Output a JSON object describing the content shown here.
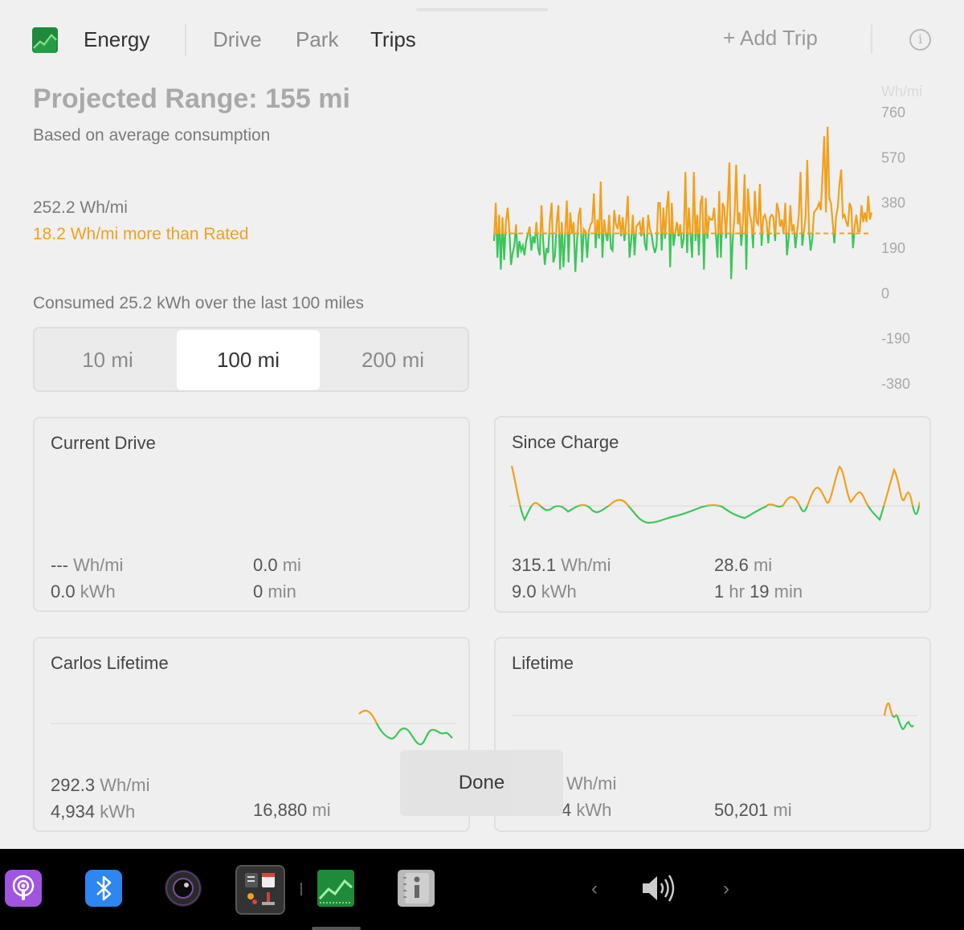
{
  "header": {
    "app_title": "Energy",
    "tabs": [
      {
        "label": "Drive",
        "active": false
      },
      {
        "label": "Park",
        "active": false
      },
      {
        "label": "Trips",
        "active": true
      }
    ],
    "add_trip_label": "+ Add Trip",
    "info_glyph": "i"
  },
  "range": {
    "title": "Projected Range: 155 mi",
    "subtitle": "Based on average consumption",
    "avg_consumption": "252.2 Wh/mi",
    "vs_rated": "18.2 Wh/mi more than Rated",
    "consumed_summary": "Consumed 25.2 kWh over the last 100 miles"
  },
  "distance_selector": {
    "options": [
      {
        "label": "10 mi",
        "active": false
      },
      {
        "label": "100 mi",
        "active": true
      },
      {
        "label": "200 mi",
        "active": false
      }
    ]
  },
  "chart_data": {
    "type": "line",
    "ylabel": "Wh/mi",
    "ylim": [
      -380,
      760
    ],
    "yticks": [
      760,
      570,
      380,
      190,
      0,
      -190,
      -380
    ],
    "reference_line": 252,
    "colors": {
      "above": "#f2a01c",
      "below": "#3cc65a",
      "reference": "#f2a01c"
    },
    "values": [
      220,
      380,
      150,
      330,
      100,
      320,
      140,
      300,
      360,
      270,
      120,
      170,
      200,
      290,
      150,
      220,
      180,
      200,
      160,
      220,
      250,
      280,
      180,
      240,
      210,
      300,
      190,
      160,
      370,
      220,
      120,
      190,
      170,
      310,
      380,
      130,
      160,
      300,
      370,
      100,
      300,
      110,
      250,
      390,
      130,
      340,
      250,
      300,
      90,
      220,
      330,
      360,
      130,
      270,
      260,
      150,
      260,
      290,
      300,
      420,
      190,
      310,
      230,
      470,
      150,
      310,
      250,
      220,
      330,
      190,
      180,
      350,
      290,
      270,
      330,
      240,
      320,
      220,
      300,
      410,
      150,
      220,
      330,
      160,
      280,
      290,
      300,
      240,
      320,
      210,
      180,
      330,
      270,
      250,
      200,
      170,
      200,
      380,
      380,
      180,
      360,
      230,
      360,
      430,
      110,
      380,
      200,
      250,
      300,
      240,
      290,
      190,
      230,
      510,
      170,
      360,
      250,
      150,
      510,
      220,
      330,
      160,
      380,
      410,
      100,
      400,
      230,
      320,
      310,
      310,
      360,
      250,
      150,
      430,
      150,
      380,
      360,
      230,
      380,
      550,
      60,
      230,
      320,
      540,
      290,
      340,
      200,
      300,
      500,
      100,
      440,
      330,
      300,
      190,
      430,
      300,
      290,
      460,
      200,
      320,
      330,
      300,
      210,
      320,
      330,
      320,
      220,
      380,
      350,
      280,
      310,
      250,
      380,
      160,
      230,
      370,
      260,
      290,
      190,
      260,
      330,
      510,
      200,
      260,
      320,
      560,
      270,
      180,
      230,
      340,
      350,
      360,
      380,
      350,
      500,
      660,
      340,
      700,
      400,
      380,
      300,
      210,
      320,
      360,
      460,
      520,
      320,
      330,
      300,
      280,
      380,
      360,
      190,
      280,
      330,
      260,
      260,
      370,
      300,
      340,
      300,
      410,
      310,
      340
    ]
  },
  "cards": {
    "current_drive": {
      "title": "Current Drive",
      "rate_value": "---",
      "rate_unit": "Wh/mi",
      "energy_value": "0.0",
      "energy_unit": "kWh",
      "distance_value": "0.0",
      "distance_unit": "mi",
      "time_value": "0",
      "time_unit": "min"
    },
    "since_charge": {
      "title": "Since Charge",
      "rate_value": "315.1",
      "rate_unit": "Wh/mi",
      "energy_value": "9.0",
      "energy_unit": "kWh",
      "distance_value": "28.6",
      "distance_unit": "mi",
      "time_h_value": "1",
      "time_h_unit": "hr",
      "time_m_value": "19",
      "time_m_unit": "min"
    },
    "carlos_lifetime": {
      "title": "Carlos Lifetime",
      "rate_value": "292.3",
      "rate_unit": "Wh/mi",
      "energy_value": "4,934",
      "energy_unit": "kWh",
      "distance_value": "16,880",
      "distance_unit": "mi"
    },
    "lifetime": {
      "title": "Lifetime",
      "rate_unit": "Wh/mi",
      "energy_value_visible": "4",
      "energy_unit": "kWh",
      "distance_value": "50,201",
      "distance_unit": "mi"
    }
  },
  "done_label": "Done",
  "taskbar": {
    "icons": [
      {
        "name": "podcasts-icon",
        "color": "#a055e0"
      },
      {
        "name": "bluetooth-icon",
        "color": "#2e86f0"
      },
      {
        "name": "camera-icon",
        "color": "#222222"
      },
      {
        "name": "toybox-icon",
        "color": "#333333"
      },
      {
        "name": "energy-app-icon",
        "color": "#1f8a3a"
      },
      {
        "name": "manual-icon",
        "color": "#b9b9b9"
      },
      {
        "name": "volume-icon",
        "color": "#cccccc"
      }
    ],
    "prev_glyph": "‹",
    "next_glyph": "›"
  }
}
